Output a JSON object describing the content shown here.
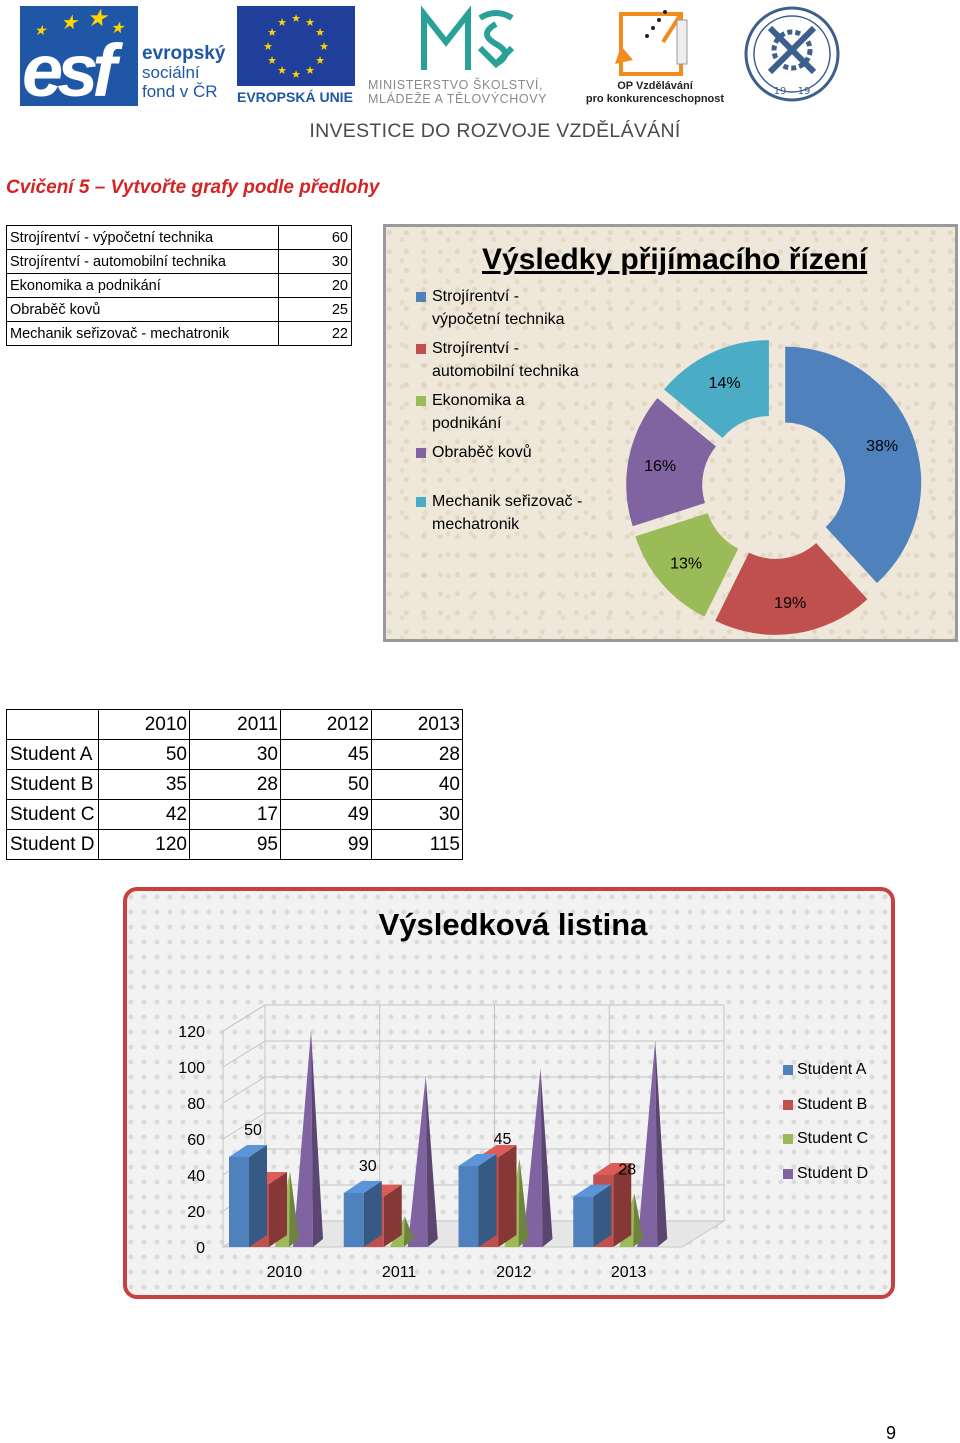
{
  "header": {
    "esf": {
      "line1": "evropský",
      "line2": "sociální",
      "line3": "fond v ČR"
    },
    "eu_caption": "EVROPSKÁ UNIE",
    "msmt": {
      "line1": "MINISTERSTVO ŠKOLSTVÍ,",
      "line2": "MLÁDEŽE A TĚLOVÝCHOVY"
    },
    "op": {
      "line1": "OP Vzdělávání",
      "line2": "pro konkurenceschopnost"
    },
    "seal_year_left": "19",
    "seal_year_right": "19",
    "banner": "INVESTICE DO ROZVOJE VZDĚLÁVÁNÍ"
  },
  "exercise_title": "Cvičení 5 – Vytvořte grafy podle předlohy",
  "table1": [
    {
      "label": "Strojírentví - výpočetní technika",
      "value": "60"
    },
    {
      "label": "Strojírentví - automobilní technika",
      "value": "30"
    },
    {
      "label": "Ekonomika a podnikání",
      "value": "20"
    },
    {
      "label": "Obraběč kovů",
      "value": "25"
    },
    {
      "label": "Mechanik seřizovač - mechatronik",
      "value": "22"
    }
  ],
  "colors": {
    "blue": "#4f81bd",
    "red": "#c0504d",
    "green": "#9bbb59",
    "purple": "#8064a2",
    "cyan": "#4bacc6"
  },
  "chart_data": [
    {
      "type": "pie",
      "title": "Výsledky přijímacího řízení",
      "style": "doughnut, exploded",
      "legend_position": "left",
      "categories": [
        "Strojírentví - výpočetní technika",
        "Strojírentví - automobilní technika",
        "Ekonomika a podnikání",
        "Obraběč kovů",
        "Mechanik seřizovač - mechatronik"
      ],
      "legend_lines": [
        [
          "Strojírentví -",
          "výpočetní technika"
        ],
        [
          "Strojírentví -",
          "automobilní technika"
        ],
        [
          "Ekonomika a",
          "podnikání"
        ],
        [
          "Obraběč kovů"
        ],
        [
          "Mechanik seřizovač -",
          "mechatronik"
        ]
      ],
      "values": [
        60,
        30,
        20,
        25,
        22
      ],
      "data_labels": [
        "38%",
        "19%",
        "13%",
        "16%",
        "14%"
      ]
    },
    {
      "type": "bar",
      "style": "3d pyramid/column",
      "title": "Výsledková listina",
      "categories": [
        "2010",
        "2011",
        "2012",
        "2013"
      ],
      "series": [
        {
          "name": "Student A",
          "values": [
            50,
            30,
            45,
            28
          ]
        },
        {
          "name": "Student B",
          "values": [
            35,
            28,
            50,
            40
          ]
        },
        {
          "name": "Student C",
          "values": [
            42,
            17,
            49,
            30
          ]
        },
        {
          "name": "Student D",
          "values": [
            120,
            95,
            99,
            115
          ]
        }
      ],
      "data_labels_series": "Student A",
      "data_labels": [
        "50",
        "30",
        "45",
        "28"
      ],
      "ylim": [
        0,
        120
      ],
      "yticks": [
        "0",
        "20",
        "40",
        "60",
        "80",
        "100",
        "120"
      ],
      "grid": true,
      "legend_position": "right"
    }
  ],
  "table2": {
    "header": [
      "",
      "2010",
      "2011",
      "2012",
      "2013"
    ],
    "rows": [
      [
        "Student A",
        "50",
        "30",
        "45",
        "28"
      ],
      [
        "Student B",
        "35",
        "28",
        "50",
        "40"
      ],
      [
        "Student C",
        "42",
        "17",
        "49",
        "30"
      ],
      [
        "Student D",
        "120",
        "95",
        "99",
        "115"
      ]
    ]
  },
  "page_number": "9"
}
